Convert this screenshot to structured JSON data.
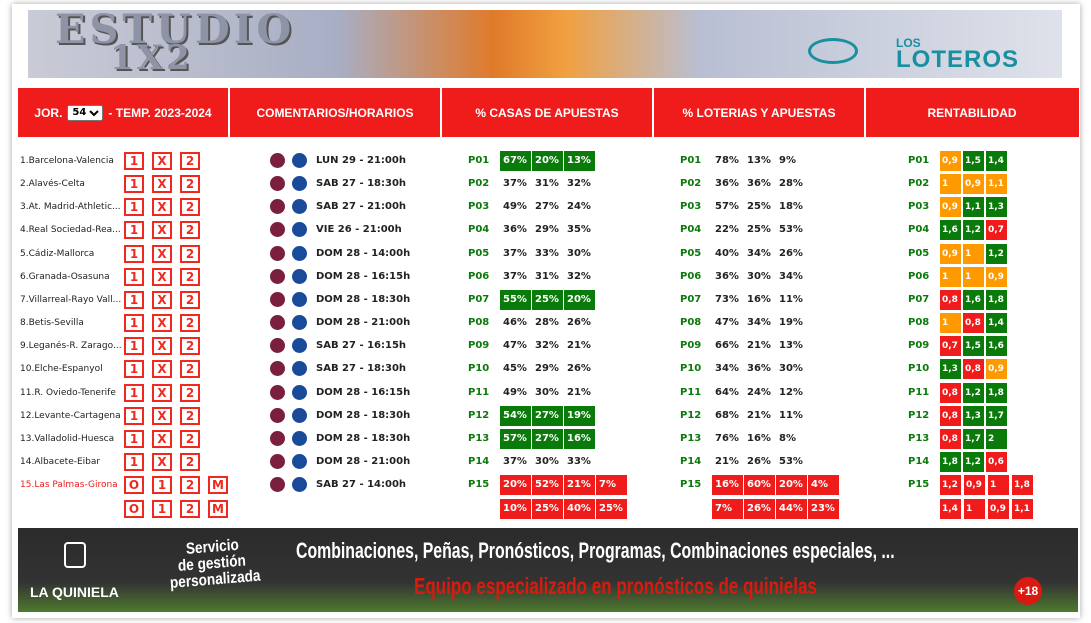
{
  "header": {
    "logo_line1": "ESTUDIO",
    "logo_line2": "1X2",
    "brand_small": "LOS",
    "brand": "LOTEROS"
  },
  "nav": {
    "jornada_label": "JOR.",
    "jornada": "54",
    "temporada": "- TEMP. 2023-2024",
    "tabs": [
      "COMENTARIOS/HORARIOS",
      "% CASAS DE APUESTAS",
      "% LOTERIAS Y APUESTAS",
      "RENTABILIDAD"
    ]
  },
  "colors": {
    "highlight": "#0a7a0a",
    "orange": "#ff9900",
    "green": "#0a7a0a",
    "red": "#f01c1c"
  },
  "options": [
    "1",
    "X",
    "2"
  ],
  "rows": [
    {
      "match": "1.Barcelona-Valencia",
      "time": "LUN 29 - 21:00h",
      "id": "P01",
      "casas": [
        "67%",
        "20%",
        "13%"
      ],
      "highlight": true,
      "loterias": [
        "78%",
        "13%",
        "9%"
      ],
      "rent": [
        "0,9",
        "1,5",
        "1,4"
      ],
      "rent_colors": [
        "orange",
        "green",
        "green"
      ]
    },
    {
      "match": "2.Alavés-Celta",
      "time": "SAB 27 - 18:30h",
      "id": "P02",
      "casas": [
        "37%",
        "31%",
        "32%"
      ],
      "highlight": false,
      "loterias": [
        "36%",
        "36%",
        "28%"
      ],
      "rent": [
        "1",
        "0,9",
        "1,1"
      ],
      "rent_colors": [
        "orange",
        "orange",
        "orange"
      ]
    },
    {
      "match": "3.At. Madrid-Athletic...",
      "time": "SAB 27 - 21:00h",
      "id": "P03",
      "casas": [
        "49%",
        "27%",
        "24%"
      ],
      "highlight": false,
      "loterias": [
        "57%",
        "25%",
        "18%"
      ],
      "rent": [
        "0,9",
        "1,1",
        "1,3"
      ],
      "rent_colors": [
        "orange",
        "green",
        "green"
      ]
    },
    {
      "match": "4.Real Sociedad-Rea...",
      "time": "VIE 26 - 21:00h",
      "id": "P04",
      "casas": [
        "36%",
        "29%",
        "35%"
      ],
      "highlight": false,
      "loterias": [
        "22%",
        "25%",
        "53%"
      ],
      "rent": [
        "1,6",
        "1,2",
        "0,7"
      ],
      "rent_colors": [
        "green",
        "green",
        "red"
      ]
    },
    {
      "match": "5.Cádiz-Mallorca",
      "time": "DOM 28 - 14:00h",
      "id": "P05",
      "casas": [
        "37%",
        "33%",
        "30%"
      ],
      "highlight": false,
      "loterias": [
        "40%",
        "34%",
        "26%"
      ],
      "rent": [
        "0,9",
        "1",
        "1,2"
      ],
      "rent_colors": [
        "orange",
        "orange",
        "green"
      ]
    },
    {
      "match": "6.Granada-Osasuna",
      "time": "DOM 28 - 16:15h",
      "id": "P06",
      "casas": [
        "37%",
        "31%",
        "32%"
      ],
      "highlight": false,
      "loterias": [
        "36%",
        "30%",
        "34%"
      ],
      "rent": [
        "1",
        "1",
        "0,9"
      ],
      "rent_colors": [
        "orange",
        "orange",
        "orange"
      ]
    },
    {
      "match": "7.Villarreal-Rayo Vall...",
      "time": "DOM 28 - 18:30h",
      "id": "P07",
      "casas": [
        "55%",
        "25%",
        "20%"
      ],
      "highlight": true,
      "loterias": [
        "73%",
        "16%",
        "11%"
      ],
      "rent": [
        "0,8",
        "1,6",
        "1,8"
      ],
      "rent_colors": [
        "red",
        "green",
        "green"
      ]
    },
    {
      "match": "8.Betis-Sevilla",
      "time": "DOM 28 - 21:00h",
      "id": "P08",
      "casas": [
        "46%",
        "28%",
        "26%"
      ],
      "highlight": false,
      "loterias": [
        "47%",
        "34%",
        "19%"
      ],
      "rent": [
        "1",
        "0,8",
        "1,4"
      ],
      "rent_colors": [
        "orange",
        "red",
        "green"
      ]
    },
    {
      "match": "9.Leganés-R. Zarago...",
      "time": "SAB 27 - 16:15h",
      "id": "P09",
      "casas": [
        "47%",
        "32%",
        "21%"
      ],
      "highlight": false,
      "loterias": [
        "66%",
        "21%",
        "13%"
      ],
      "rent": [
        "0,7",
        "1,5",
        "1,6"
      ],
      "rent_colors": [
        "red",
        "green",
        "green"
      ]
    },
    {
      "match": "10.Elche-Espanyol",
      "time": "SAB 27 - 18:30h",
      "id": "P10",
      "casas": [
        "45%",
        "29%",
        "26%"
      ],
      "highlight": false,
      "loterias": [
        "34%",
        "36%",
        "30%"
      ],
      "rent": [
        "1,3",
        "0,8",
        "0,9"
      ],
      "rent_colors": [
        "green",
        "red",
        "orange"
      ]
    },
    {
      "match": "11.R. Oviedo-Tenerife",
      "time": "DOM 28 - 16:15h",
      "id": "P11",
      "casas": [
        "49%",
        "30%",
        "21%"
      ],
      "highlight": false,
      "loterias": [
        "64%",
        "24%",
        "12%"
      ],
      "rent": [
        "0,8",
        "1,2",
        "1,8"
      ],
      "rent_colors": [
        "red",
        "green",
        "green"
      ]
    },
    {
      "match": "12.Levante-Cartagena",
      "time": "DOM 28 - 18:30h",
      "id": "P12",
      "casas": [
        "54%",
        "27%",
        "19%"
      ],
      "highlight": true,
      "loterias": [
        "68%",
        "21%",
        "11%"
      ],
      "rent": [
        "0,8",
        "1,3",
        "1,7"
      ],
      "rent_colors": [
        "red",
        "green",
        "green"
      ]
    },
    {
      "match": "13.Valladolid-Huesca",
      "time": "DOM 28 - 18:30h",
      "id": "P13",
      "casas": [
        "57%",
        "27%",
        "16%"
      ],
      "highlight": true,
      "loterias": [
        "76%",
        "16%",
        "8%"
      ],
      "rent": [
        "0,8",
        "1,7",
        "2"
      ],
      "rent_colors": [
        "red",
        "green",
        "green"
      ]
    },
    {
      "match": "14.Albacete-Eibar",
      "time": "DOM 28 - 21:00h",
      "id": "P14",
      "casas": [
        "37%",
        "30%",
        "33%"
      ],
      "highlight": false,
      "loterias": [
        "21%",
        "26%",
        "53%"
      ],
      "rent": [
        "1,8",
        "1,2",
        "0,6"
      ],
      "rent_colors": [
        "green",
        "green",
        "red"
      ]
    }
  ],
  "special": {
    "match": "15.Las Palmas-Girona",
    "time": "SAB 27 - 14:00h",
    "id": "P15",
    "options": [
      "O",
      "1",
      "2",
      "M"
    ],
    "casas": [
      [
        "20%",
        "52%",
        "21%",
        "7%"
      ],
      [
        "10%",
        "25%",
        "40%",
        "25%"
      ]
    ],
    "loterias": [
      [
        "16%",
        "60%",
        "20%",
        "4%"
      ],
      [
        "7%",
        "26%",
        "44%",
        "23%"
      ]
    ],
    "rent": [
      [
        "1,2",
        "0,9",
        "1",
        "1,8"
      ],
      [
        "1,4",
        "1",
        "0,9",
        "1,1"
      ]
    ]
  },
  "footer": {
    "brand": "LA QUINIELA",
    "service": [
      "Servicio",
      "de gestión",
      "personalizada"
    ],
    "headline": "Combinaciones, Peñas, Pronósticos, Programas, Combinaciones especiales, ...",
    "subline": "Equipo especializado en pronósticos de quinielas",
    "age": "+18"
  }
}
